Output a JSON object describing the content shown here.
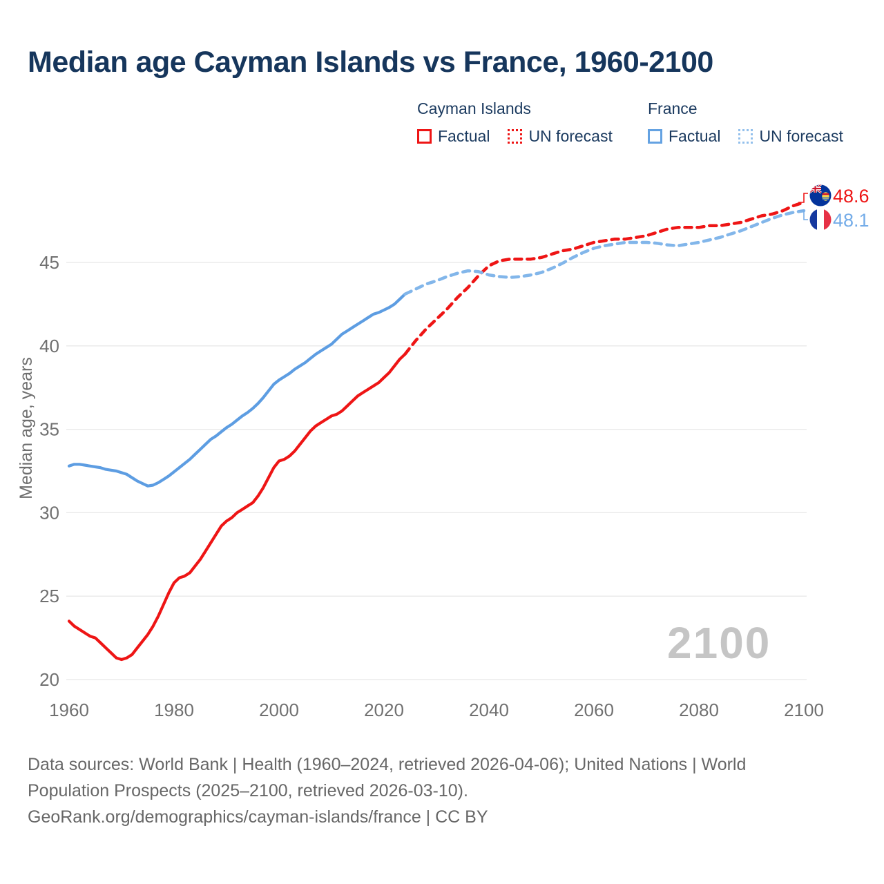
{
  "title": "Median age Cayman Islands vs France, 1960-2100",
  "legend": {
    "cayman": {
      "label": "Cayman Islands",
      "factual": "Factual",
      "forecast": "UN forecast"
    },
    "france": {
      "label": "France",
      "factual": "Factual",
      "forecast": "UN forecast"
    }
  },
  "end_labels": {
    "cayman": {
      "value": "48.6",
      "flag": "cayman-islands-flag"
    },
    "france": {
      "value": "48.1",
      "flag": "france-flag"
    }
  },
  "watermark": "2100",
  "footer": {
    "sources": "Data sources: World Bank | Health (1960–2024, retrieved 2026-04-06); United Nations | World Population Prospects (2025–2100, retrieved 2026-03-10).",
    "attribution": "GeoRank.org/demographics/cayman-islands/france | CC BY"
  },
  "colors": {
    "title_navy": "#16365c",
    "cayman_red": "#ee1515",
    "france_blue_solid": "#5d9de2",
    "france_blue_forecast": "#82b6ea",
    "france_label_blue": "#74ace8",
    "axis_gray": "#707070",
    "gridline_gray": "#e8e8e8",
    "watermark_gray": "#c5c5c5"
  },
  "chart_data": {
    "type": "line",
    "title": "Median age Cayman Islands vs France, 1960-2100",
    "xlabel": "",
    "ylabel": "Median age, years",
    "x_ticks": [
      1960,
      1980,
      2000,
      2020,
      2040,
      2060,
      2080,
      2100
    ],
    "y_ticks": [
      20,
      25,
      30,
      35,
      40,
      45
    ],
    "xlim": [
      1960,
      2100
    ],
    "ylim": [
      19.5,
      49.5
    ],
    "grid": "horizontal",
    "legend_position": "top",
    "series": [
      {
        "name": "Cayman Islands — Factual",
        "country": "Cayman Islands",
        "role": "factual",
        "line": "solid",
        "color": "#ee1515",
        "years": [
          1960,
          1961,
          1962,
          1963,
          1964,
          1965,
          1966,
          1967,
          1968,
          1969,
          1970,
          1971,
          1972,
          1973,
          1974,
          1975,
          1976,
          1977,
          1978,
          1979,
          1980,
          1981,
          1982,
          1983,
          1984,
          1985,
          1986,
          1987,
          1988,
          1989,
          1990,
          1991,
          1992,
          1993,
          1994,
          1995,
          1996,
          1997,
          1998,
          1999,
          2000,
          2001,
          2002,
          2003,
          2004,
          2005,
          2006,
          2007,
          2008,
          2009,
          2010,
          2011,
          2012,
          2013,
          2014,
          2015,
          2016,
          2017,
          2018,
          2019,
          2020,
          2021,
          2022,
          2023,
          2024
        ],
        "values": [
          23.5,
          23.2,
          23.0,
          22.8,
          22.6,
          22.5,
          22.2,
          21.9,
          21.6,
          21.3,
          21.2,
          21.3,
          21.5,
          21.9,
          22.3,
          22.7,
          23.2,
          23.8,
          24.5,
          25.2,
          25.8,
          26.1,
          26.2,
          26.4,
          26.8,
          27.2,
          27.7,
          28.2,
          28.7,
          29.2,
          29.5,
          29.7,
          30.0,
          30.2,
          30.4,
          30.6,
          31.0,
          31.5,
          32.1,
          32.7,
          33.1,
          33.2,
          33.4,
          33.7,
          34.1,
          34.5,
          34.9,
          35.2,
          35.4,
          35.6,
          35.8,
          35.9,
          36.1,
          36.4,
          36.7,
          37.0,
          37.2,
          37.4,
          37.6,
          37.8,
          38.1,
          38.4,
          38.8,
          39.2,
          39.5
        ]
      },
      {
        "name": "Cayman Islands — UN forecast",
        "country": "Cayman Islands",
        "role": "forecast",
        "line": "dashed",
        "color": "#ee1515",
        "years": [
          2024,
          2026,
          2028,
          2030,
          2032,
          2034,
          2036,
          2038,
          2040,
          2042,
          2044,
          2046,
          2048,
          2050,
          2052,
          2054,
          2056,
          2058,
          2060,
          2062,
          2064,
          2066,
          2068,
          2070,
          2072,
          2074,
          2076,
          2078,
          2080,
          2082,
          2084,
          2086,
          2088,
          2090,
          2092,
          2094,
          2096,
          2098,
          2100
        ],
        "values": [
          39.5,
          40.3,
          41.0,
          41.6,
          42.2,
          42.9,
          43.5,
          44.2,
          44.8,
          45.1,
          45.2,
          45.2,
          45.2,
          45.3,
          45.5,
          45.7,
          45.8,
          46.0,
          46.2,
          46.3,
          46.4,
          46.4,
          46.5,
          46.6,
          46.8,
          47.0,
          47.1,
          47.1,
          47.1,
          47.2,
          47.2,
          47.3,
          47.4,
          47.6,
          47.8,
          47.9,
          48.1,
          48.4,
          48.6
        ]
      },
      {
        "name": "France — Factual",
        "country": "France",
        "role": "factual",
        "line": "solid",
        "color": "#5d9de2",
        "years": [
          1960,
          1961,
          1962,
          1963,
          1964,
          1965,
          1966,
          1967,
          1968,
          1969,
          1970,
          1971,
          1972,
          1973,
          1974,
          1975,
          1976,
          1977,
          1978,
          1979,
          1980,
          1981,
          1982,
          1983,
          1984,
          1985,
          1986,
          1987,
          1988,
          1989,
          1990,
          1991,
          1992,
          1993,
          1994,
          1995,
          1996,
          1997,
          1998,
          1999,
          2000,
          2001,
          2002,
          2003,
          2004,
          2005,
          2006,
          2007,
          2008,
          2009,
          2010,
          2011,
          2012,
          2013,
          2014,
          2015,
          2016,
          2017,
          2018,
          2019,
          2020,
          2021,
          2022,
          2023,
          2024
        ],
        "values": [
          32.8,
          32.9,
          32.9,
          32.85,
          32.8,
          32.75,
          32.7,
          32.6,
          32.55,
          32.5,
          32.4,
          32.3,
          32.1,
          31.9,
          31.75,
          31.6,
          31.65,
          31.8,
          32.0,
          32.2,
          32.45,
          32.7,
          32.95,
          33.2,
          33.5,
          33.8,
          34.1,
          34.4,
          34.6,
          34.85,
          35.1,
          35.3,
          35.55,
          35.8,
          36.0,
          36.25,
          36.55,
          36.9,
          37.3,
          37.7,
          37.95,
          38.15,
          38.35,
          38.6,
          38.8,
          39.0,
          39.25,
          39.5,
          39.7,
          39.9,
          40.1,
          40.4,
          40.7,
          40.9,
          41.1,
          41.3,
          41.5,
          41.7,
          41.9,
          42.0,
          42.15,
          42.3,
          42.5,
          42.8,
          43.1
        ]
      },
      {
        "name": "France — UN forecast",
        "country": "France",
        "role": "forecast",
        "line": "dashed",
        "color": "#82b6ea",
        "years": [
          2024,
          2026,
          2028,
          2030,
          2032,
          2034,
          2036,
          2038,
          2040,
          2042,
          2044,
          2046,
          2048,
          2050,
          2052,
          2054,
          2056,
          2058,
          2060,
          2062,
          2064,
          2066,
          2068,
          2070,
          2072,
          2074,
          2076,
          2078,
          2080,
          2082,
          2084,
          2086,
          2088,
          2090,
          2092,
          2094,
          2096,
          2098,
          2100
        ],
        "values": [
          43.1,
          43.4,
          43.7,
          43.9,
          44.15,
          44.35,
          44.5,
          44.45,
          44.25,
          44.15,
          44.1,
          44.15,
          44.25,
          44.4,
          44.65,
          44.95,
          45.3,
          45.6,
          45.85,
          46.0,
          46.1,
          46.2,
          46.2,
          46.2,
          46.15,
          46.05,
          46.0,
          46.1,
          46.2,
          46.35,
          46.5,
          46.7,
          46.9,
          47.15,
          47.4,
          47.65,
          47.85,
          48.0,
          48.1
        ]
      }
    ]
  }
}
